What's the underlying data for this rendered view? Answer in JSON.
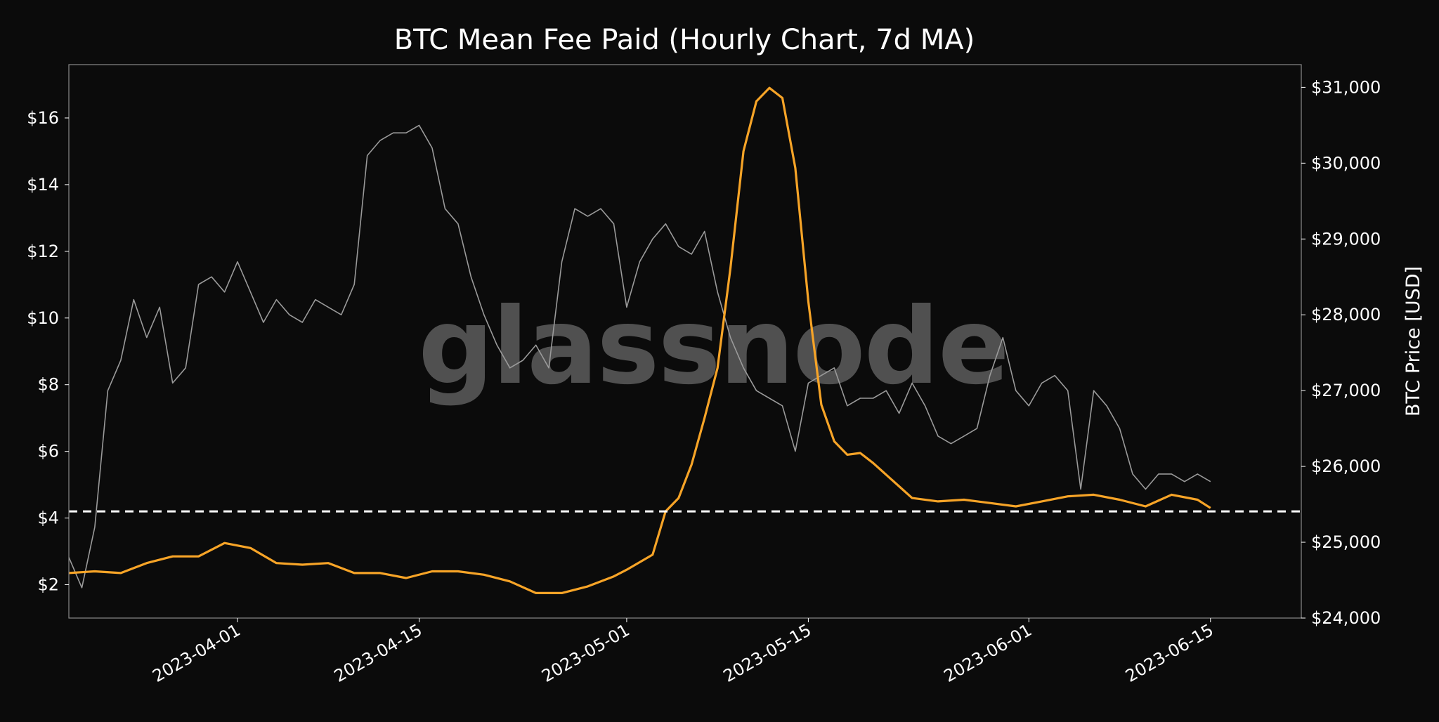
{
  "chart_data": {
    "type": "line",
    "title": "BTC Mean Fee Paid (Hourly Chart, 7d MA)",
    "xlabel": "",
    "ylabel_left": "",
    "ylabel_right": "BTC Price [USD]",
    "watermark": "glassnode",
    "x_range": [
      "2023-03-19",
      "2023-06-22"
    ],
    "x_ticks": [
      "2023-04-01",
      "2023-04-15",
      "2023-05-01",
      "2023-05-15",
      "2023-06-01",
      "2023-06-15"
    ],
    "y_left": {
      "range": [
        1.0,
        17.6
      ],
      "ticks": [
        2,
        4,
        6,
        8,
        10,
        12,
        14,
        16
      ],
      "tick_labels": [
        "$2",
        "$4",
        "$6",
        "$8",
        "$10",
        "$12",
        "$14",
        "$16"
      ]
    },
    "y_right": {
      "range": [
        24000,
        31300
      ],
      "ticks": [
        24000,
        25000,
        26000,
        27000,
        28000,
        29000,
        30000,
        31000
      ],
      "tick_labels": [
        "$24,000",
        "$25,000",
        "$26,000",
        "$27,000",
        "$28,000",
        "$29,000",
        "$30,000",
        "$31,000"
      ]
    },
    "reference_line": {
      "axis": "left",
      "value": 4.2,
      "style": "dashed",
      "color": "#ffffff"
    },
    "grid": false,
    "legend": "none",
    "series": [
      {
        "axis": "left",
        "color": "#f7a427",
        "x": [
          "2023-03-19",
          "2023-03-21",
          "2023-03-23",
          "2023-03-25",
          "2023-03-27",
          "2023-03-29",
          "2023-03-31",
          "2023-04-02",
          "2023-04-04",
          "2023-04-06",
          "2023-04-08",
          "2023-04-10",
          "2023-04-12",
          "2023-04-14",
          "2023-04-16",
          "2023-04-18",
          "2023-04-20",
          "2023-04-22",
          "2023-04-24",
          "2023-04-26",
          "2023-04-28",
          "2023-04-30",
          "2023-05-01",
          "2023-05-03",
          "2023-05-04",
          "2023-05-05",
          "2023-05-06",
          "2023-05-07",
          "2023-05-08",
          "2023-05-09",
          "2023-05-10",
          "2023-05-11",
          "2023-05-12",
          "2023-05-13",
          "2023-05-14",
          "2023-05-15",
          "2023-05-16",
          "2023-05-17",
          "2023-05-18",
          "2023-05-19",
          "2023-05-20",
          "2023-05-21",
          "2023-05-23",
          "2023-05-25",
          "2023-05-27",
          "2023-05-29",
          "2023-05-31",
          "2023-06-02",
          "2023-06-04",
          "2023-06-06",
          "2023-06-08",
          "2023-06-10",
          "2023-06-12",
          "2023-06-14",
          "2023-06-15"
        ],
        "y": [
          2.35,
          2.4,
          2.35,
          2.65,
          2.85,
          2.85,
          3.25,
          3.1,
          2.65,
          2.6,
          2.65,
          2.35,
          2.35,
          2.2,
          2.4,
          2.4,
          2.3,
          2.1,
          1.75,
          1.75,
          1.95,
          2.25,
          2.45,
          2.9,
          4.2,
          4.6,
          5.6,
          7.0,
          8.5,
          11.5,
          15.0,
          16.5,
          16.9,
          16.6,
          14.5,
          10.5,
          7.4,
          6.3,
          5.9,
          5.95,
          5.65,
          5.3,
          4.6,
          4.5,
          4.55,
          4.45,
          4.35,
          4.5,
          4.65,
          4.7,
          4.55,
          4.35,
          4.7,
          4.55,
          4.3
        ]
      },
      {
        "axis": "right",
        "color": "#9a9a9a",
        "x": [
          "2023-03-19",
          "2023-03-20",
          "2023-03-21",
          "2023-03-22",
          "2023-03-23",
          "2023-03-24",
          "2023-03-25",
          "2023-03-26",
          "2023-03-27",
          "2023-03-28",
          "2023-03-29",
          "2023-03-30",
          "2023-03-31",
          "2023-04-01",
          "2023-04-02",
          "2023-04-03",
          "2023-04-04",
          "2023-04-05",
          "2023-04-06",
          "2023-04-07",
          "2023-04-08",
          "2023-04-09",
          "2023-04-10",
          "2023-04-11",
          "2023-04-12",
          "2023-04-13",
          "2023-04-14",
          "2023-04-15",
          "2023-04-16",
          "2023-04-17",
          "2023-04-18",
          "2023-04-19",
          "2023-04-20",
          "2023-04-21",
          "2023-04-22",
          "2023-04-23",
          "2023-04-24",
          "2023-04-25",
          "2023-04-26",
          "2023-04-27",
          "2023-04-28",
          "2023-04-29",
          "2023-04-30",
          "2023-05-01",
          "2023-05-02",
          "2023-05-03",
          "2023-05-04",
          "2023-05-05",
          "2023-05-06",
          "2023-05-07",
          "2023-05-08",
          "2023-05-09",
          "2023-05-10",
          "2023-05-11",
          "2023-05-12",
          "2023-05-13",
          "2023-05-14",
          "2023-05-15",
          "2023-05-16",
          "2023-05-17",
          "2023-05-18",
          "2023-05-19",
          "2023-05-20",
          "2023-05-21",
          "2023-05-22",
          "2023-05-23",
          "2023-05-24",
          "2023-05-25",
          "2023-05-26",
          "2023-05-27",
          "2023-05-28",
          "2023-05-29",
          "2023-05-30",
          "2023-05-31",
          "2023-06-01",
          "2023-06-02",
          "2023-06-03",
          "2023-06-04",
          "2023-06-05",
          "2023-06-06",
          "2023-06-07",
          "2023-06-08",
          "2023-06-09",
          "2023-06-10",
          "2023-06-11",
          "2023-06-12",
          "2023-06-13",
          "2023-06-14",
          "2023-06-15"
        ],
        "y": [
          24800,
          24400,
          25200,
          27000,
          27400,
          28200,
          27700,
          28100,
          27100,
          27300,
          28400,
          28500,
          28300,
          28700,
          28300,
          27900,
          28200,
          28000,
          27900,
          28200,
          28100,
          28000,
          28400,
          30100,
          30300,
          30400,
          30400,
          30500,
          30200,
          29400,
          29200,
          28500,
          28000,
          27600,
          27300,
          27400,
          27600,
          27300,
          28700,
          29400,
          29300,
          29400,
          29200,
          28100,
          28700,
          29000,
          29200,
          28900,
          28800,
          29100,
          28300,
          27700,
          27300,
          27000,
          26900,
          26800,
          26200,
          27100,
          27200,
          27300,
          26800,
          26900,
          26900,
          27000,
          26700,
          27100,
          26800,
          26400,
          26300,
          26400,
          26500,
          27200,
          27700,
          27000,
          26800,
          27100,
          27200,
          27000,
          25700,
          27000,
          26800,
          26500,
          25900,
          25700,
          25900,
          25900,
          25800,
          25900,
          25800
        ]
      }
    ]
  }
}
